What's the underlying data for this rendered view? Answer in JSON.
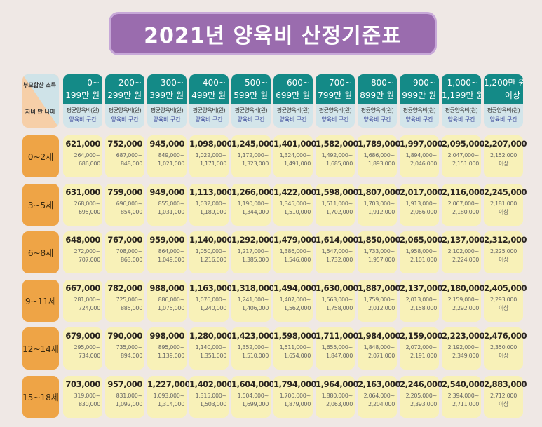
{
  "title": "2021년 양육비 산정기준표",
  "corner": {
    "income": "부모합산 소득",
    "age": "자녀 만 나이"
  },
  "sub_labels": {
    "avg": "평균양육비(원)",
    "range": "양육비 구간"
  },
  "columns": [
    {
      "l1": "0~",
      "l2": "199만 원"
    },
    {
      "l1": "200~",
      "l2": "299만 원"
    },
    {
      "l1": "300~",
      "l2": "399만 원"
    },
    {
      "l1": "400~",
      "l2": "499만 원"
    },
    {
      "l1": "500~",
      "l2": "599만 원"
    },
    {
      "l1": "600~",
      "l2": "699만 원"
    },
    {
      "l1": "700~",
      "l2": "799만 원"
    },
    {
      "l1": "800~",
      "l2": "899만 원"
    },
    {
      "l1": "900~",
      "l2": "999만 원"
    },
    {
      "l1": "1,000~",
      "l2": "1,199만 원"
    },
    {
      "l1": "1,200만 원",
      "l2": "이상"
    }
  ],
  "rows": [
    {
      "age": "0~2세",
      "cells": [
        [
          "621,000",
          "264,000~",
          "686,000"
        ],
        [
          "752,000",
          "687,000~",
          "848,000"
        ],
        [
          "945,000",
          "849,000~",
          "1,021,000"
        ],
        [
          "1,098,000",
          "1,022,000~",
          "1,171,000"
        ],
        [
          "1,245,000",
          "1,172,000~",
          "1,323,000"
        ],
        [
          "1,401,000",
          "1,324,000~",
          "1,491,000"
        ],
        [
          "1,582,000",
          "1,492,000~",
          "1,685,000"
        ],
        [
          "1,789,000",
          "1,686,000~",
          "1,893,000"
        ],
        [
          "1,997,000",
          "1,894,000~",
          "2,046,000"
        ],
        [
          "2,095,000",
          "2,047,000~",
          "2,151,000"
        ],
        [
          "2,207,000",
          "2,152,000",
          "이상"
        ]
      ]
    },
    {
      "age": "3~5세",
      "cells": [
        [
          "631,000",
          "268,000~",
          "695,000"
        ],
        [
          "759,000",
          "696,000~",
          "854,000"
        ],
        [
          "949,000",
          "855,000~",
          "1,031,000"
        ],
        [
          "1,113,000",
          "1,032,000~",
          "1,189,000"
        ],
        [
          "1,266,000",
          "1,190,000~",
          "1,344,000"
        ],
        [
          "1,422,000",
          "1,345,000~",
          "1,510,000"
        ],
        [
          "1,598,000",
          "1,511,000~",
          "1,702,000"
        ],
        [
          "1,807,000",
          "1,703,000~",
          "1,912,000"
        ],
        [
          "2,017,000",
          "1,913,000~",
          "2,066,000"
        ],
        [
          "2,116,000",
          "2,067,000~",
          "2,180,000"
        ],
        [
          "2,245,000",
          "2,181,000",
          "이상"
        ]
      ]
    },
    {
      "age": "6~8세",
      "cells": [
        [
          "648,000",
          "272,000~",
          "707,000"
        ],
        [
          "767,000",
          "708,000~",
          "863,000"
        ],
        [
          "959,000",
          "864,000~",
          "1,049,000"
        ],
        [
          "1,140,000",
          "1,050,000~",
          "1,216,000"
        ],
        [
          "1,292,000",
          "1,217,000~",
          "1,385,000"
        ],
        [
          "1,479,000",
          "1,386,000~",
          "1,546,000"
        ],
        [
          "1,614,000",
          "1,547,000~",
          "1,732,000"
        ],
        [
          "1,850,000",
          "1,733,000~",
          "1,957,000"
        ],
        [
          "2,065,000",
          "1,958,000~",
          "2,101,000"
        ],
        [
          "2,137,000",
          "2,102,000~",
          "2,224,000"
        ],
        [
          "2,312,000",
          "2,225,000",
          "이상"
        ]
      ]
    },
    {
      "age": "9~11세",
      "cells": [
        [
          "667,000",
          "281,000~",
          "724,000"
        ],
        [
          "782,000",
          "725,000~",
          "885,000"
        ],
        [
          "988,000",
          "886,000~",
          "1,075,000"
        ],
        [
          "1,163,000",
          "1,076,000~",
          "1,240,000"
        ],
        [
          "1,318,000",
          "1,241,000~",
          "1,406,000"
        ],
        [
          "1,494,000",
          "1,407,000~",
          "1,562,000"
        ],
        [
          "1,630,000",
          "1,563,000~",
          "1,758,000"
        ],
        [
          "1,887,000",
          "1,759,000~",
          "2,012,000"
        ],
        [
          "2,137,000",
          "2,013,000~",
          "2,158,000"
        ],
        [
          "2,180,000",
          "2,159,000~",
          "2,292,000"
        ],
        [
          "2,405,000",
          "2,293,000",
          "이상"
        ]
      ]
    },
    {
      "age": "12~14세",
      "cells": [
        [
          "679,000",
          "295,000~",
          "734,000"
        ],
        [
          "790,000",
          "735,000~",
          "894,000"
        ],
        [
          "998,000",
          "895,000~",
          "1,139,000"
        ],
        [
          "1,280,000",
          "1,140,000~",
          "1,351,000"
        ],
        [
          "1,423,000",
          "1,352,000~",
          "1,510,000"
        ],
        [
          "1,598,000",
          "1,511,000~",
          "1,654,000"
        ],
        [
          "1,711,000",
          "1,655,000~",
          "1,847,000"
        ],
        [
          "1,984,000",
          "1,848,000~",
          "2,071,000"
        ],
        [
          "2,159,000",
          "2,072,000~",
          "2,191,000"
        ],
        [
          "2,223,000",
          "2,192,000~",
          "2,349,000"
        ],
        [
          "2,476,000",
          "2,350,000",
          "이상"
        ]
      ]
    },
    {
      "age": "15~18세",
      "cells": [
        [
          "703,000",
          "319,000~",
          "830,000"
        ],
        [
          "957,000",
          "831,000~",
          "1,092,000"
        ],
        [
          "1,227,000",
          "1,093,000~",
          "1,314,000"
        ],
        [
          "1,402,000",
          "1,315,000~",
          "1,503,000"
        ],
        [
          "1,604,000",
          "1,504,000~",
          "1,699,000"
        ],
        [
          "1,794,000",
          "1,700,000~",
          "1,879,000"
        ],
        [
          "1,964,000",
          "1,880,000~",
          "2,063,000"
        ],
        [
          "2,163,000",
          "2,064,000~",
          "2,204,000"
        ],
        [
          "2,246,000",
          "2,205,000~",
          "2,393,000"
        ],
        [
          "2,540,000",
          "2,394,000~",
          "2,711,000"
        ],
        [
          "2,883,000",
          "2,712,000",
          "이상"
        ]
      ]
    }
  ]
}
